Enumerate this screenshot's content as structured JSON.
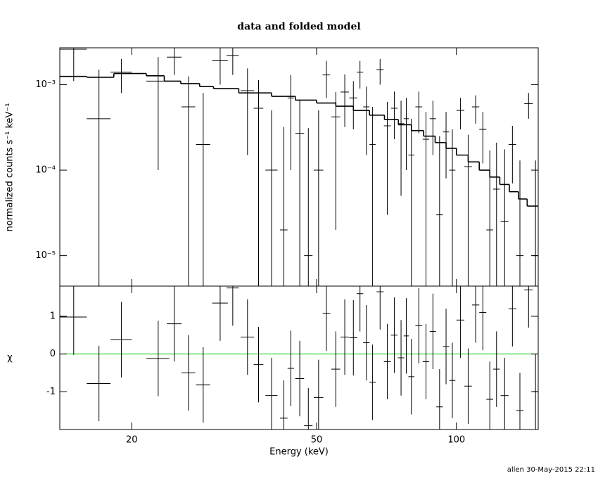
{
  "chart_data": [
    {
      "type": "spectrum",
      "title": "data and folded model",
      "ylabel": "normalized counts s⁻¹ keV⁻¹",
      "log_x": true,
      "log_y": true,
      "xlim": [
        14,
        150
      ],
      "ylim": [
        4.4e-06,
        0.0027
      ],
      "xticks": [
        20,
        50,
        100
      ],
      "yticks": [
        {
          "value": 1e-05,
          "label": "10⁻⁵"
        },
        {
          "value": 0.0001,
          "label": "10⁻⁴"
        },
        {
          "value": 0.001,
          "label": "10⁻³"
        }
      ],
      "data": {
        "color": "#000000",
        "x": [
          15.0,
          17.0,
          19.0,
          22.8,
          24.7,
          26.5,
          28.5,
          31.0,
          33.0,
          35.5,
          37.5,
          40.0,
          42.5,
          44.0,
          46.0,
          48.0,
          50.5,
          52.5,
          55.0,
          57.5,
          60.0,
          62.0,
          64.0,
          66.0,
          68.5,
          71.0,
          73.5,
          76.0,
          78.0,
          80.0,
          83.0,
          86.0,
          89.0,
          92.0,
          95.0,
          98.0,
          102,
          106,
          110,
          114,
          118,
          122,
          127,
          132,
          137,
          143,
          148
        ],
        "xerr": [
          1.0,
          1.0,
          1.0,
          1.3,
          0.9,
          0.9,
          1.0,
          1.2,
          1.0,
          1.2,
          0.9,
          1.2,
          0.8,
          0.7,
          1.0,
          1.0,
          1.2,
          1.0,
          1.2,
          1.2,
          1.2,
          1.0,
          1.0,
          1.0,
          1.2,
          1.2,
          1.2,
          1.2,
          1.0,
          1.2,
          1.4,
          1.4,
          1.4,
          1.5,
          1.5,
          1.5,
          2,
          2,
          2,
          2,
          2,
          2,
          2.5,
          2.5,
          2.5,
          3,
          2
        ],
        "values": [
          0.0026,
          0.0004,
          0.0014,
          0.0011,
          0.0021,
          0.00055,
          0.0002,
          0.0019,
          0.0022,
          0.00085,
          0.00053,
          0.0001,
          2e-05,
          0.0007,
          0.00027,
          1e-05,
          0.0001,
          0.0013,
          0.00042,
          0.00082,
          0.0007,
          0.0014,
          0.00055,
          0.0002,
          0.0015,
          0.00033,
          0.00053,
          0.00035,
          0.0004,
          0.00015,
          0.00055,
          0.00023,
          0.0004,
          3e-05,
          0.00028,
          0.0001,
          0.0005,
          0.00011,
          0.00055,
          0.0003,
          2e-05,
          6e-05,
          2.5e-05,
          0.0002,
          1e-05,
          0.0006,
          1e-05
        ],
        "errors": [
          0.0015,
          0.0011,
          0.0006,
          0.001,
          0.0008,
          0.0007,
          0.0006,
          0.0009,
          0.0009,
          0.0007,
          0.0006,
          0.0004,
          0.0003,
          0.0006,
          0.0004,
          0.0003,
          0.0004,
          0.0006,
          0.0004,
          0.0005,
          0.0004,
          0.0005,
          0.0004,
          0.00035,
          0.0005,
          0.0003,
          0.0003,
          0.0003,
          0.0003,
          0.00025,
          0.00028,
          0.00025,
          0.00025,
          0.00022,
          0.0002,
          0.0002,
          0.0002,
          0.00015,
          0.0002,
          0.00018,
          0.00015,
          0.00015,
          0.00015,
          0.00013,
          0.00012,
          0.0002,
          0.00012
        ]
      },
      "model": {
        "color": "#000000",
        "bins": [
          14,
          16,
          18.3,
          21.5,
          23.5,
          25.5,
          28,
          30,
          34,
          40,
          45,
          50,
          55,
          60,
          65,
          70,
          75,
          80,
          85,
          90,
          95,
          100,
          106,
          112,
          118,
          124,
          130,
          136,
          142,
          150
        ],
        "values": [
          0.00125,
          0.00122,
          0.00135,
          0.00127,
          0.0011,
          0.00103,
          0.00095,
          0.0009,
          0.0008,
          0.00073,
          0.00066,
          0.00061,
          0.00056,
          0.0005,
          0.00044,
          0.00039,
          0.00034,
          0.00029,
          0.00025,
          0.00021,
          0.00018,
          0.00015,
          0.000125,
          0.0001,
          8.3e-05,
          6.8e-05,
          5.6e-05,
          4.6e-05,
          3.8e-05
        ]
      }
    },
    {
      "type": "residuals",
      "xlabel": "Energy (keV)",
      "ylabel": "χ",
      "log_x": true,
      "xlim": [
        14,
        150
      ],
      "ylim": [
        -2,
        1.8
      ],
      "xticks": [
        20,
        50,
        100
      ],
      "yticks": [
        -1,
        0,
        1
      ],
      "zero_line_color": "#00cc00",
      "color": "#000000",
      "x": [
        15.0,
        17.0,
        19.0,
        22.8,
        24.7,
        26.5,
        28.5,
        31.0,
        33.0,
        35.5,
        37.5,
        40.0,
        42.5,
        44.0,
        46.0,
        48.0,
        50.5,
        52.5,
        55.0,
        57.5,
        60.0,
        62.0,
        64.0,
        66.0,
        68.5,
        71.0,
        73.5,
        76.0,
        78.0,
        80.0,
        83.0,
        86.0,
        89.0,
        92.0,
        95.0,
        98.0,
        102,
        106,
        110,
        114,
        118,
        122,
        127,
        132,
        137,
        143,
        148
      ],
      "xerr": [
        1.0,
        1.0,
        1.0,
        1.3,
        0.9,
        0.9,
        1.0,
        1.2,
        1.0,
        1.2,
        0.9,
        1.2,
        0.8,
        0.7,
        1.0,
        1.0,
        1.2,
        1.0,
        1.2,
        1.2,
        1.2,
        1.0,
        1.0,
        1.0,
        1.2,
        1.2,
        1.2,
        1.2,
        1.0,
        1.2,
        1.4,
        1.4,
        1.4,
        1.5,
        1.5,
        1.5,
        2,
        2,
        2,
        2,
        2,
        2,
        2.5,
        2.5,
        2.5,
        3,
        2
      ],
      "values": [
        0.98,
        -0.78,
        0.38,
        -0.12,
        0.8,
        -0.5,
        -0.82,
        1.35,
        1.75,
        0.45,
        -0.28,
        -1.1,
        -1.7,
        -0.38,
        -0.65,
        -1.9,
        -1.15,
        1.08,
        -0.4,
        0.45,
        0.43,
        1.6,
        0.3,
        -0.75,
        1.65,
        -0.2,
        0.5,
        -0.1,
        0.48,
        -0.6,
        0.75,
        -0.2,
        0.6,
        -1.4,
        0.2,
        -0.7,
        0.9,
        -0.85,
        1.3,
        1.1,
        -1.2,
        -0.4,
        -1.1,
        1.2,
        -1.5,
        1.7,
        -1.0
      ],
      "errors": [
        1,
        1,
        1,
        1,
        1,
        1,
        1,
        1,
        1,
        1,
        1,
        1,
        1,
        1,
        1,
        1,
        1,
        1,
        1,
        1,
        1,
        1,
        1,
        1,
        1,
        1,
        1,
        1,
        1,
        1,
        1,
        1,
        1,
        1,
        1,
        1,
        1,
        1,
        1,
        1,
        1,
        1,
        1,
        1,
        1,
        1,
        1
      ]
    }
  ],
  "footer": "allen 30-May-2015 22:11"
}
